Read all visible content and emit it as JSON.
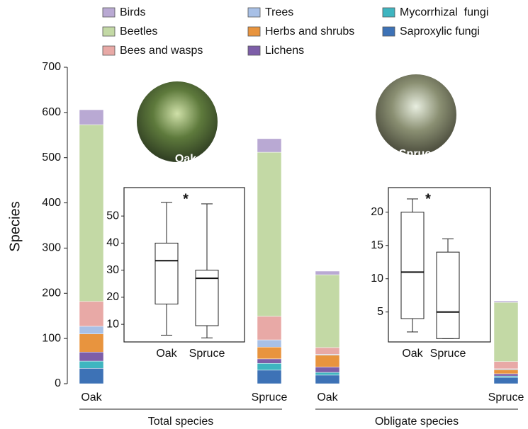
{
  "chart_data": [
    {
      "type": "bar",
      "stacked": true,
      "ylabel": "Species",
      "categories": [
        "Oak",
        "Spruce",
        "Oak",
        "Spruce"
      ],
      "groups": [
        "Total species",
        "Obligate species"
      ],
      "annotations": [
        "Oak",
        "Spruce"
      ],
      "ylim": [
        0,
        700
      ],
      "yticks": [
        0,
        100,
        200,
        300,
        400,
        500,
        600,
        700
      ],
      "series": [
        {
          "name": "Birds",
          "color": "#b9a9d3",
          "values": [
            33,
            30,
            8,
            3
          ]
        },
        {
          "name": "Beetles",
          "color": "#c3d9a5",
          "values": [
            391,
            363,
            161,
            131
          ]
        },
        {
          "name": "Bees and wasps",
          "color": "#e8a9a6",
          "values": [
            55,
            52,
            15,
            16
          ]
        },
        {
          "name": "Trees",
          "color": "#a8c0e6",
          "values": [
            17,
            16,
            2,
            2
          ]
        },
        {
          "name": "Herbs and shrubs",
          "color": "#e8943e",
          "values": [
            40,
            26,
            26,
            9
          ]
        },
        {
          "name": "Lichens",
          "color": "#7d5ea8",
          "values": [
            20,
            10,
            12,
            5
          ]
        },
        {
          "name": "Mycorrhizal  fungi",
          "color": "#3fb5c0",
          "values": [
            16,
            15,
            6,
            3
          ]
        },
        {
          "name": "Saproxylic fungi",
          "color": "#3d72b6",
          "values": [
            34,
            30,
            19,
            14
          ]
        }
      ]
    },
    {
      "type": "box",
      "categories": [
        "Oak",
        "Spruce"
      ],
      "annotation": "*",
      "ylim": [
        3.5,
        60.5
      ],
      "yticks": [
        10,
        20,
        30,
        40,
        50
      ],
      "boxes": [
        {
          "whislo": 6,
          "q1": 17.5,
          "med": 33.5,
          "q3": 40,
          "whishi": 55
        },
        {
          "whislo": 5,
          "q1": 9.5,
          "med": 27,
          "q3": 30,
          "whishi": 54.5
        }
      ]
    },
    {
      "type": "box",
      "categories": [
        "Oak",
        "Spruce"
      ],
      "annotation": "*",
      "ylim": [
        0.5,
        23.7
      ],
      "yticks": [
        5,
        10,
        15,
        20
      ],
      "boxes": [
        {
          "whislo": 2,
          "q1": 4,
          "med": 11,
          "q3": 20,
          "whishi": 22
        },
        {
          "whislo": 1,
          "q1": 1,
          "med": 5,
          "q3": 14,
          "whishi": 16
        }
      ]
    }
  ]
}
